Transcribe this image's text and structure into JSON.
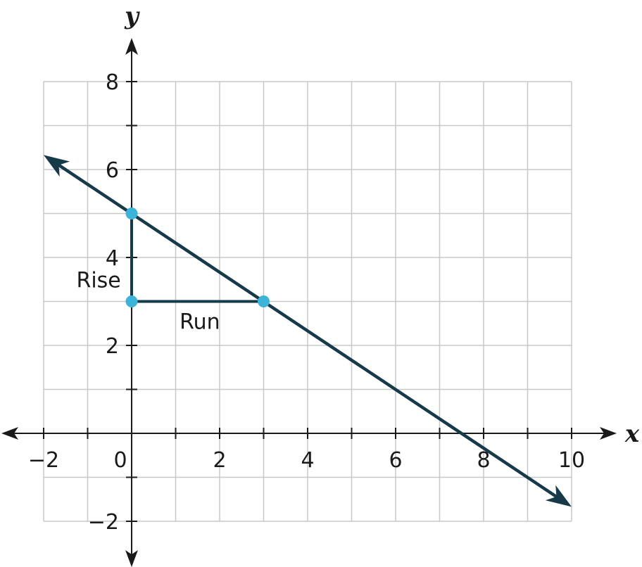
{
  "chart_data": {
    "type": "line",
    "title": "",
    "xlabel": "x",
    "ylabel": "y",
    "xlim": [
      -2,
      10
    ],
    "ylim": [
      -2,
      8
    ],
    "grid": true,
    "x_ticks": [
      -2,
      0,
      2,
      4,
      6,
      8,
      10
    ],
    "y_ticks": [
      -2,
      2,
      4,
      6,
      8
    ],
    "x_tick_labels": [
      "−2",
      "0",
      "2",
      "4",
      "6",
      "8",
      "10"
    ],
    "y_tick_labels": [
      "−2",
      "2",
      "4",
      "6",
      "8"
    ],
    "line": {
      "slope": -0.6667,
      "intercept": 5,
      "from": [
        -2,
        6.33
      ],
      "to": [
        10,
        -1.67
      ]
    },
    "points": [
      {
        "x": 0,
        "y": 5
      },
      {
        "x": 0,
        "y": 3
      },
      {
        "x": 3,
        "y": 3
      }
    ],
    "rise_segment": {
      "from": [
        0,
        5
      ],
      "to": [
        0,
        3
      ]
    },
    "run_segment": {
      "from": [
        0,
        3
      ],
      "to": [
        3,
        3
      ]
    },
    "annotations": [
      {
        "text": "Rise",
        "x": -0.75,
        "y": 3.5
      },
      {
        "text": "Run",
        "x": 1.55,
        "y": 2.55
      }
    ],
    "colors": {
      "line": "#173a4b",
      "point": "#3cb4d9",
      "grid": "#c8c8c8",
      "axis": "#1a1a1a"
    }
  }
}
